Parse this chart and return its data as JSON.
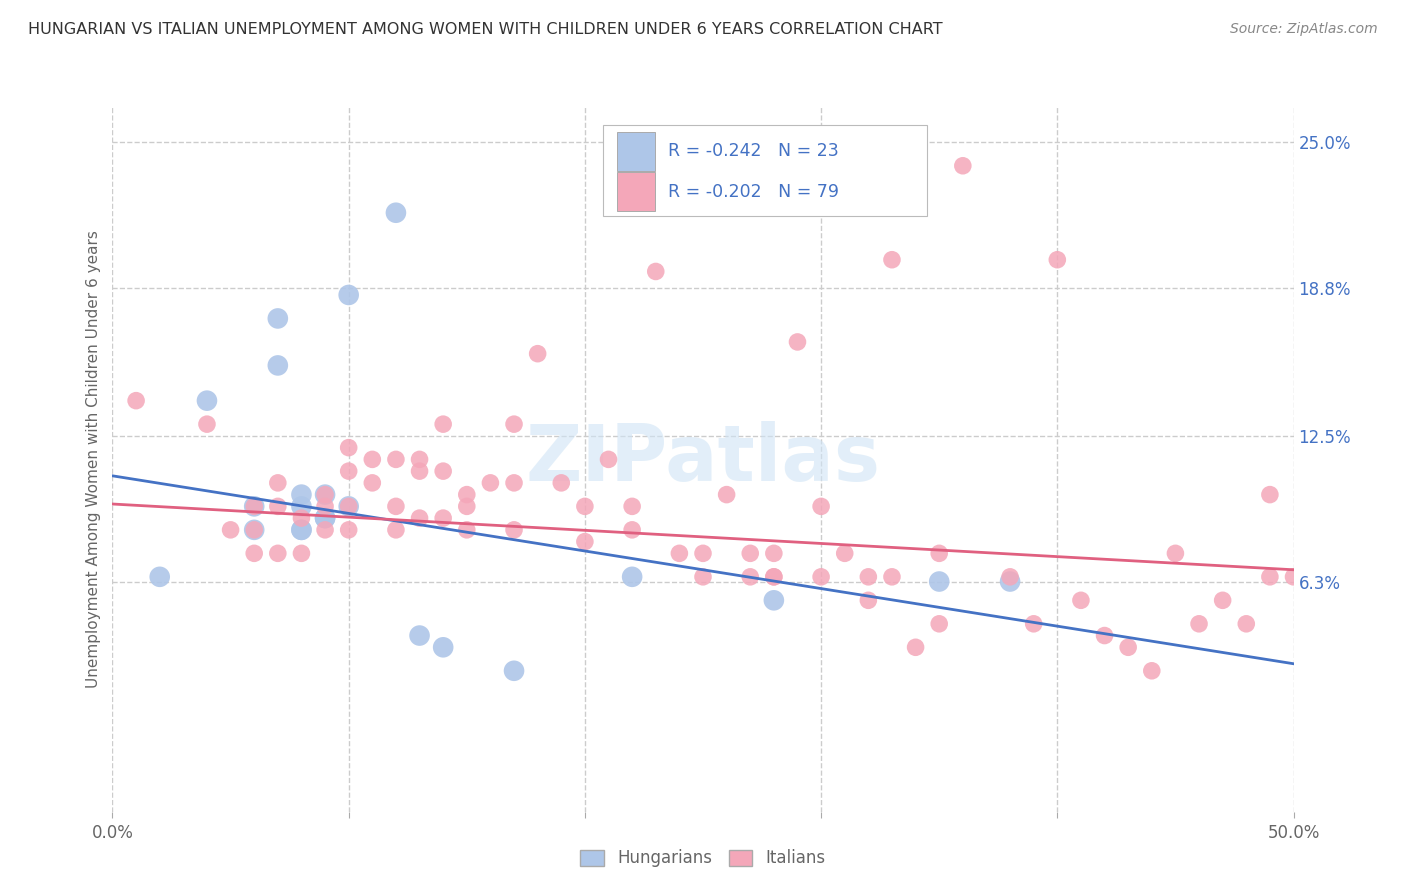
{
  "title": "HUNGARIAN VS ITALIAN UNEMPLOYMENT AMONG WOMEN WITH CHILDREN UNDER 6 YEARS CORRELATION CHART",
  "source": "Source: ZipAtlas.com",
  "ylabel": "Unemployment Among Women with Children Under 6 years",
  "watermark": "ZIPatlas",
  "xlim": [
    0.0,
    0.5
  ],
  "ylim": [
    -0.035,
    0.265
  ],
  "xtick_positions": [
    0.0,
    0.1,
    0.2,
    0.3,
    0.4,
    0.5
  ],
  "xticklabels": [
    "0.0%",
    "",
    "",
    "",
    "",
    "50.0%"
  ],
  "ytick_right_labels": [
    "25.0%",
    "18.8%",
    "12.5%",
    "6.3%"
  ],
  "ytick_right_values": [
    0.25,
    0.188,
    0.125,
    0.063
  ],
  "grid_color": "#cccccc",
  "background_color": "#ffffff",
  "title_color": "#333333",
  "axis_label_color": "#666666",
  "right_tick_color": "#4472c4",
  "legend_R_color": "#4472c4",
  "hun_color": "#aec6e8",
  "ita_color": "#f4a7b9",
  "hun_line_color": "#4472c4",
  "ita_line_color": "#e06080",
  "legend_hun_label": "Hungarians",
  "legend_ita_label": "Italians",
  "hun_R": "-0.242",
  "hun_N": "23",
  "ita_R": "-0.202",
  "ita_N": "79",
  "hun_scatter_x": [
    0.02,
    0.04,
    0.06,
    0.06,
    0.07,
    0.07,
    0.08,
    0.08,
    0.08,
    0.08,
    0.09,
    0.09,
    0.09,
    0.1,
    0.1,
    0.12,
    0.13,
    0.14,
    0.17,
    0.22,
    0.28,
    0.35,
    0.38
  ],
  "hun_scatter_y": [
    0.065,
    0.14,
    0.095,
    0.085,
    0.175,
    0.155,
    0.085,
    0.095,
    0.1,
    0.085,
    0.09,
    0.09,
    0.1,
    0.185,
    0.095,
    0.22,
    0.04,
    0.035,
    0.025,
    0.065,
    0.055,
    0.063,
    0.063
  ],
  "ita_scatter_x": [
    0.01,
    0.04,
    0.05,
    0.06,
    0.06,
    0.06,
    0.07,
    0.07,
    0.07,
    0.08,
    0.08,
    0.09,
    0.09,
    0.09,
    0.1,
    0.1,
    0.1,
    0.1,
    0.11,
    0.11,
    0.12,
    0.12,
    0.12,
    0.13,
    0.13,
    0.13,
    0.14,
    0.14,
    0.14,
    0.15,
    0.15,
    0.15,
    0.16,
    0.17,
    0.17,
    0.17,
    0.18,
    0.19,
    0.2,
    0.2,
    0.21,
    0.22,
    0.22,
    0.23,
    0.24,
    0.25,
    0.25,
    0.26,
    0.27,
    0.27,
    0.28,
    0.28,
    0.28,
    0.29,
    0.3,
    0.3,
    0.31,
    0.32,
    0.32,
    0.33,
    0.33,
    0.34,
    0.35,
    0.35,
    0.36,
    0.38,
    0.39,
    0.4,
    0.41,
    0.42,
    0.43,
    0.44,
    0.45,
    0.46,
    0.47,
    0.48,
    0.49,
    0.49,
    0.5
  ],
  "ita_scatter_y": [
    0.14,
    0.13,
    0.085,
    0.095,
    0.085,
    0.075,
    0.105,
    0.095,
    0.075,
    0.09,
    0.075,
    0.1,
    0.095,
    0.085,
    0.12,
    0.11,
    0.095,
    0.085,
    0.115,
    0.105,
    0.115,
    0.095,
    0.085,
    0.115,
    0.11,
    0.09,
    0.13,
    0.11,
    0.09,
    0.1,
    0.095,
    0.085,
    0.105,
    0.13,
    0.105,
    0.085,
    0.16,
    0.105,
    0.095,
    0.08,
    0.115,
    0.095,
    0.085,
    0.195,
    0.075,
    0.075,
    0.065,
    0.1,
    0.075,
    0.065,
    0.075,
    0.065,
    0.065,
    0.165,
    0.095,
    0.065,
    0.075,
    0.065,
    0.055,
    0.2,
    0.065,
    0.035,
    0.045,
    0.075,
    0.24,
    0.065,
    0.045,
    0.2,
    0.055,
    0.04,
    0.035,
    0.025,
    0.075,
    0.045,
    0.055,
    0.045,
    0.1,
    0.065,
    0.065
  ],
  "hun_line_y_start": 0.108,
  "hun_line_y_end": 0.028,
  "ita_line_y_start": 0.096,
  "ita_line_y_end": 0.068
}
